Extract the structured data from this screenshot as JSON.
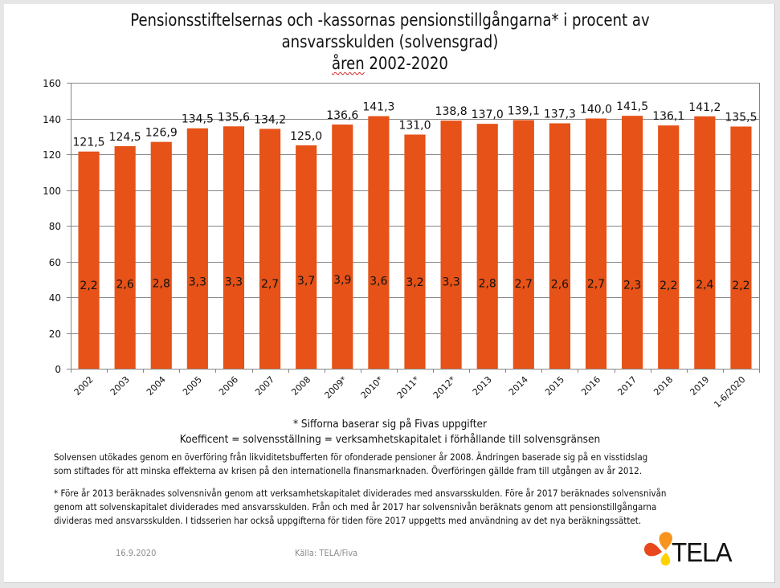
{
  "chart_data": {
    "type": "bar",
    "title": [
      "Pensionsstiftelsernas och -kassornas pensionstillgångarna* i procent av",
      "ansvarsskulden (solvensgrad)",
      "åren 2002-2020"
    ],
    "xlabel": "",
    "ylabel": "",
    "ylim": [
      0,
      160
    ],
    "yticks": [
      0,
      20,
      40,
      60,
      80,
      100,
      120,
      140,
      160
    ],
    "grid": true,
    "legend": "none",
    "bar_color": "#E65217",
    "categories": [
      "2002",
      "2003",
      "2004",
      "2005",
      "2006",
      "2007",
      "2008",
      "2009*",
      "2010*",
      "2011*",
      "2012*",
      "2013",
      "2014",
      "2015",
      "2016",
      "2017",
      "2018",
      "2019",
      "1-6/2020"
    ],
    "series": [
      {
        "name": "Solvensgrad (%)",
        "values": [
          121.5,
          124.5,
          126.9,
          134.5,
          135.6,
          134.2,
          125.0,
          136.6,
          141.3,
          131.0,
          138.8,
          137.0,
          139.1,
          137.3,
          140.0,
          141.5,
          136.1,
          141.2,
          135.5
        ],
        "labels": [
          "121,5",
          "124,5",
          "126,9",
          "134,5",
          "135,6",
          "134,2",
          "125,0",
          "136,6",
          "141,3",
          "131,0",
          "138,8",
          "137,0",
          "139,1",
          "137,3",
          "140,0",
          "141,5",
          "136,1",
          "141,2",
          "135,5"
        ]
      },
      {
        "name": "Koefficient",
        "values": [
          2.2,
          2.6,
          2.8,
          3.3,
          3.3,
          2.7,
          3.7,
          3.9,
          3.6,
          3.2,
          3.3,
          2.8,
          2.7,
          2.6,
          2.7,
          2.3,
          2.2,
          2.4,
          2.2
        ],
        "labels": [
          "2,2",
          "2,6",
          "2,8",
          "3,3",
          "3,3",
          "2,7",
          "3,7",
          "3,9",
          "3,6",
          "3,2",
          "3,3",
          "2,8",
          "2,7",
          "2,6",
          "2,7",
          "2,3",
          "2,2",
          "2,4",
          "2,2"
        ]
      }
    ]
  },
  "notes": {
    "source_note": "* Sifforna baserar sig på Fivas uppgifter",
    "coefficient_note": "Koefficent = solvensställning = verksamhetskapitalet i förhållande till solvensgränsen",
    "para1": [
      "Solvensen utökades genom en överföring från likviditetsbufferten för ofonderade pensioner år 2008. Ändringen baserade sig på en visstidslag",
      "som stiftades för att minska effekterna av krisen på den internationella finansmarknaden. Överföringen gällde fram till utgången av år 2012."
    ],
    "para2": [
      "* Före år 2013 beräknades solvensnivån genom att verksamhetskapitalet dividerades med ansvarsskulden. Före år 2017 beräknades solvensnivån",
      "genom att solvenskapitalet dividerades med ansvarsskulden. Från och med år 2017 har solvensnivån beräknats genom att pensionstillgångarna",
      "divideras med ansvarsskulden. I tidsserien har också uppgifterna för tiden före 2017 uppgetts med användning av det nya beräkningssättet."
    ]
  },
  "footer": {
    "date": "16.9.2020",
    "source": "Källa: TELA/Fiva",
    "logo_text": "TELA",
    "logo_colors": {
      "top": "#F7941D",
      "left": "#E8481C",
      "bottom": "#FFD200"
    }
  }
}
